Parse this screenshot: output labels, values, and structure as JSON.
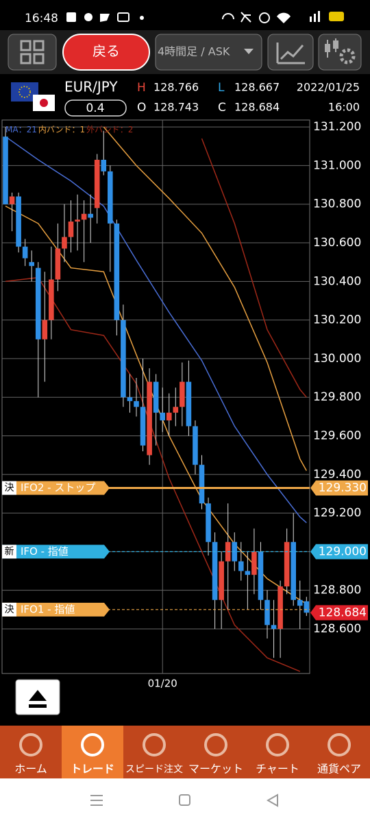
{
  "status_bar": {
    "time": "16:48"
  },
  "toolbar": {
    "back": "戻る",
    "timeframe": "4時間足 / ASK"
  },
  "quote": {
    "symbol": "EUR/JPY",
    "spread": "0.4",
    "high_label": "H",
    "high": "128.766",
    "open_label": "O",
    "open": "128.743",
    "low_label": "L",
    "low": "128.667",
    "close_label": "C",
    "close": "128.684",
    "date": "2022/01/25",
    "time": "16:00"
  },
  "chart_data": {
    "type": "candlestick",
    "categories": [
      null,
      null,
      null,
      null,
      null,
      null,
      null,
      null,
      null,
      null,
      null,
      null,
      null,
      null,
      null,
      null,
      null,
      null,
      null,
      null,
      null,
      null,
      null,
      null,
      "01/20",
      null,
      null,
      null,
      null,
      null,
      null,
      null,
      null,
      null,
      null,
      null,
      null,
      null,
      null,
      null,
      null,
      null,
      null,
      null,
      null,
      null,
      null
    ],
    "open": [
      131.15,
      130.8,
      130.84,
      130.58,
      130.5,
      130.47,
      130.1,
      130.2,
      130.41,
      130.57,
      130.63,
      130.71,
      130.72,
      130.75,
      130.78,
      131.03,
      130.97,
      130.7,
      130.2,
      129.8,
      129.78,
      129.75,
      129.5,
      129.88,
      129.72,
      129.68,
      129.72,
      129.75,
      129.88,
      129.65,
      129.45,
      129.25,
      129.05,
      128.75,
      128.95,
      129.05,
      128.95,
      128.9,
      128.88,
      129.0,
      128.75,
      128.62,
      128.6,
      128.82,
      129.05,
      128.75,
      128.743
    ],
    "high": [
      131.2,
      130.86,
      130.86,
      130.62,
      130.56,
      130.5,
      130.45,
      130.58,
      130.7,
      130.8,
      130.82,
      130.85,
      130.82,
      130.85,
      131.06,
      131.18,
      131.0,
      130.72,
      130.28,
      129.92,
      129.9,
      130.0,
      129.95,
      129.92,
      129.85,
      129.82,
      129.85,
      129.98,
      129.99,
      129.68,
      129.5,
      129.28,
      129.1,
      129.0,
      129.25,
      129.1,
      129.05,
      129.0,
      129.12,
      129.05,
      128.8,
      128.75,
      128.85,
      129.12,
      129.2,
      128.85,
      128.766
    ],
    "low": [
      130.8,
      130.66,
      130.55,
      130.48,
      130.4,
      129.8,
      129.88,
      130.1,
      130.35,
      130.5,
      130.55,
      130.56,
      130.5,
      130.6,
      130.7,
      130.95,
      130.45,
      130.12,
      129.75,
      129.72,
      129.7,
      129.52,
      129.45,
      129.55,
      129.62,
      129.6,
      129.65,
      129.65,
      129.6,
      129.4,
      129.22,
      128.98,
      128.6,
      128.6,
      128.7,
      128.9,
      128.85,
      128.7,
      128.78,
      128.7,
      128.55,
      128.45,
      128.45,
      128.78,
      128.72,
      128.6,
      128.667
    ],
    "close": [
      130.8,
      130.84,
      130.58,
      130.52,
      130.48,
      130.1,
      130.2,
      130.41,
      130.57,
      130.63,
      130.71,
      130.72,
      130.75,
      130.73,
      131.03,
      130.97,
      130.7,
      130.2,
      129.8,
      129.78,
      129.75,
      129.55,
      129.88,
      129.72,
      129.68,
      129.72,
      129.75,
      129.88,
      129.65,
      129.45,
      129.25,
      129.05,
      128.75,
      128.95,
      129.05,
      128.95,
      128.9,
      128.88,
      129.0,
      128.75,
      128.62,
      128.6,
      128.82,
      129.05,
      128.75,
      128.72,
      128.684
    ],
    "up_color": "#e8473a",
    "down_color": "#2f8fe6",
    "ylim": [
      128.369,
      131.236
    ],
    "yticks": [
      {
        "value": 128.6,
        "label": "128.600"
      },
      {
        "value": 128.8,
        "label": "128.800"
      },
      {
        "value": 129.0,
        "label": "129.000"
      },
      {
        "value": 129.2,
        "label": "129.200"
      },
      {
        "value": 129.4,
        "label": "129.400"
      },
      {
        "value": 129.6,
        "label": "129.600"
      },
      {
        "value": 129.8,
        "label": "129.800"
      },
      {
        "value": 130.0,
        "label": "130.000"
      },
      {
        "value": 130.2,
        "label": "130.200"
      },
      {
        "value": 130.4,
        "label": "130.400"
      },
      {
        "value": 130.6,
        "label": "130.600"
      },
      {
        "value": 130.8,
        "label": "130.800"
      },
      {
        "value": 131.0,
        "label": "131.000"
      },
      {
        "value": 131.2,
        "label": "131.200"
      }
    ],
    "grid": true,
    "indicators": [
      {
        "name": "MA：21",
        "color": "#4a6fd8",
        "lines": [
          {
            "x": [
              0,
              5,
              10,
              15,
              20,
              25,
              30,
              35,
              40,
              45,
              46
            ],
            "values": [
              131.15,
              131.03,
              130.92,
              130.79,
              130.51,
              130.24,
              129.99,
              129.65,
              129.4,
              129.18,
              129.15
            ]
          }
        ]
      },
      {
        "name": "内バンド：1",
        "color": "#e8a040",
        "lines": [
          {
            "x": [
              0,
              5,
              10,
              15,
              20,
              25,
              30,
              35,
              40,
              45,
              46
            ],
            "values": [
              null,
              null,
              null,
              131.2,
              131.0,
              130.83,
              130.65,
              130.37,
              129.98,
              129.48,
              129.42
            ]
          },
          {
            "x": [
              0,
              5,
              10,
              15,
              20,
              25,
              30,
              35,
              40,
              45,
              46
            ],
            "values": [
              130.79,
              130.7,
              130.47,
              130.45,
              130.02,
              129.6,
              129.27,
              129.04,
              128.86,
              128.75,
              128.73
            ]
          }
        ]
      },
      {
        "name": "外バンド：2",
        "color": "#a02818",
        "lines": [
          {
            "x": [
              0,
              5,
              10,
              15,
              20,
              25,
              30,
              35,
              40,
              45,
              46
            ],
            "values": [
              null,
              null,
              null,
              null,
              null,
              null,
              131.14,
              130.7,
              130.15,
              129.84,
              129.8
            ]
          },
          {
            "x": [
              0,
              5,
              10,
              15,
              20,
              25,
              30,
              35,
              40,
              45,
              46
            ],
            "values": [
              130.4,
              130.42,
              130.15,
              130.12,
              129.87,
              129.38,
              129.0,
              128.62,
              128.45,
              128.38,
              null
            ]
          }
        ]
      }
    ],
    "orders": [
      {
        "tag": "決",
        "label": "IFO2 - ストップ",
        "value": 129.33,
        "value_label": "129.330",
        "color": "#f0a848",
        "dashed": false
      },
      {
        "tag": "新",
        "label": "IFO - 指値",
        "value": 129.0,
        "value_label": "129.000",
        "color": "#2fb0e0",
        "dashed": true
      },
      {
        "tag": "決",
        "label": "IFO1 - 指値",
        "value": 128.7,
        "color": "#f0a848",
        "dashed": true
      }
    ],
    "current": {
      "value": 128.684,
      "label": "128.684",
      "color": "#e0202a"
    }
  },
  "nav": {
    "items": [
      "ホーム",
      "トレード",
      "スピード注文",
      "マーケット",
      "チャート",
      "通貨ペア"
    ],
    "active": 1
  }
}
